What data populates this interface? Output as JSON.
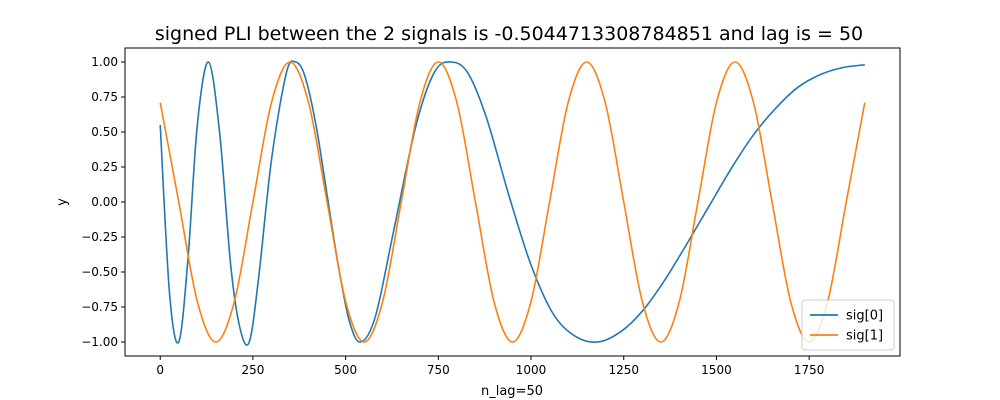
{
  "chart_data": {
    "type": "line",
    "title": "signed PLI between the 2 signals is -0.5044713308784851 and lag is = 50",
    "xlabel": "n_lag=50",
    "ylabel": "y",
    "xlim": [
      -95,
      1995
    ],
    "ylim": [
      -1.1,
      1.1
    ],
    "xticks": [
      0,
      250,
      500,
      750,
      1000,
      1250,
      1500,
      1750
    ],
    "yticks": [
      -1.0,
      -0.75,
      -0.5,
      -0.25,
      0.0,
      0.25,
      0.5,
      0.75,
      1.0
    ],
    "ytick_labels": [
      "−1.00",
      "−0.75",
      "−0.50",
      "−0.25",
      "0.00",
      "0.25",
      "0.50",
      "0.75",
      "1.00"
    ],
    "grid": false,
    "legend_position": "lower-right",
    "series": [
      {
        "name": "sig[0]",
        "color": "#1f77b4",
        "x": [
          0,
          25,
          50,
          75,
          100,
          130,
          160,
          190,
          215,
          240,
          265,
          300,
          340,
          365,
          390,
          420,
          450,
          480,
          510,
          540,
          580,
          630,
          690,
          740,
          785,
          830,
          880,
          940,
          1000,
          1060,
          1120,
          1180,
          1240,
          1300,
          1360,
          1420,
          1480,
          1540,
          1600,
          1660,
          1720,
          1780,
          1840,
          1900
        ],
        "y": [
          0.55,
          -0.65,
          -1.0,
          -0.4,
          0.55,
          1.0,
          0.5,
          -0.45,
          -0.9,
          -1.0,
          -0.55,
          0.3,
          0.92,
          1.0,
          0.9,
          0.55,
          0.05,
          -0.45,
          -0.85,
          -1.0,
          -0.82,
          -0.2,
          0.55,
          0.93,
          1.0,
          0.92,
          0.6,
          0.05,
          -0.45,
          -0.8,
          -0.96,
          -1.0,
          -0.93,
          -0.78,
          -0.56,
          -0.3,
          -0.03,
          0.24,
          0.48,
          0.67,
          0.82,
          0.91,
          0.96,
          0.98
        ]
      },
      {
        "name": "sig[1]",
        "color": "#ff7f0e",
        "x": [
          0,
          50,
          100,
          150,
          200,
          250,
          300,
          350,
          400,
          450,
          500,
          550,
          600,
          650,
          700,
          750,
          800,
          850,
          900,
          950,
          1000,
          1050,
          1100,
          1150,
          1200,
          1250,
          1300,
          1350,
          1400,
          1450,
          1500,
          1550,
          1600,
          1650,
          1700,
          1750,
          1800,
          1850,
          1900
        ],
        "y": [
          0.71,
          0.0,
          -0.71,
          -1.0,
          -0.71,
          0.0,
          0.71,
          1.0,
          0.71,
          0.0,
          -0.71,
          -1.0,
          -0.71,
          0.0,
          0.71,
          1.0,
          0.71,
          0.0,
          -0.71,
          -1.0,
          -0.71,
          0.0,
          0.71,
          1.0,
          0.71,
          0.0,
          -0.71,
          -1.0,
          -0.71,
          0.0,
          0.71,
          1.0,
          0.71,
          0.0,
          -0.71,
          -1.0,
          -0.71,
          0.0,
          0.71
        ]
      }
    ]
  }
}
